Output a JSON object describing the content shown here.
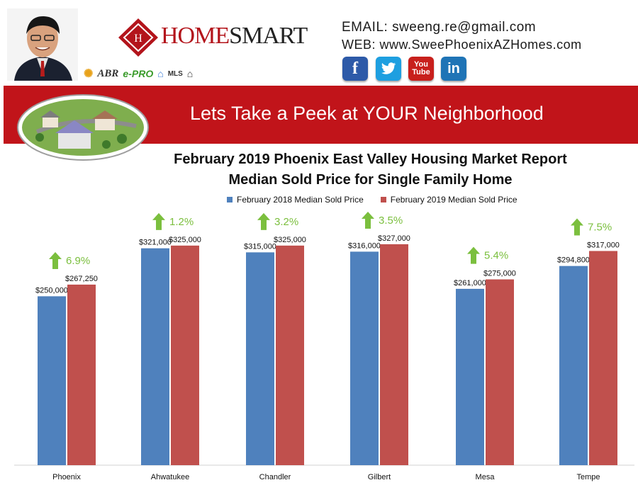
{
  "header": {
    "brand_home": "HOME",
    "brand_smart": "SMART",
    "certifications": [
      "ABR",
      "e-PRO",
      "MLS"
    ],
    "email": "EMAIL: sweeng.re@gmail.com",
    "web": "WEB: www.SweePhoenixAZHomes.com",
    "social": {
      "facebook": "f",
      "twitter": "twitter-icon",
      "youtube_top": "You",
      "youtube_bottom": "Tube",
      "linkedin": "in"
    }
  },
  "banner": {
    "title": "Lets Take a Peek at YOUR Neighborhood"
  },
  "colors": {
    "series_2018": "#4f81bd",
    "series_2019": "#c0504d",
    "banner": "#c1141a",
    "increase": "#7bbf3e"
  },
  "chart_data": {
    "type": "bar",
    "title": "February 2019 Phoenix East Valley Housing Market Report",
    "subtitle": "Median Sold Price for Single Family Home",
    "categories": [
      "Phoenix",
      "Ahwatukee",
      "Chandler",
      "Gilbert",
      "Mesa",
      "Tempe"
    ],
    "series": [
      {
        "name": "February 2018 Median Sold Price",
        "values": [
          250000,
          321000,
          315000,
          316000,
          261000,
          294800
        ],
        "labels": [
          "$250,000",
          "$321,000",
          "$315,000",
          "$316,000",
          "$261,000",
          "$294,800"
        ]
      },
      {
        "name": "February 2019 Median Sold Price",
        "values": [
          267250,
          325000,
          325000,
          327000,
          275000,
          317000
        ],
        "labels": [
          "$267,250",
          "$325,000",
          "$325,000",
          "$327,000",
          "$275,000",
          "$317,000"
        ]
      }
    ],
    "changes": [
      "6.9%",
      "1.2%",
      "3.2%",
      "3.5%",
      "5.4%",
      "7.5%"
    ],
    "ylim": [
      0,
      360000
    ],
    "grid": false,
    "legend_position": "top"
  }
}
